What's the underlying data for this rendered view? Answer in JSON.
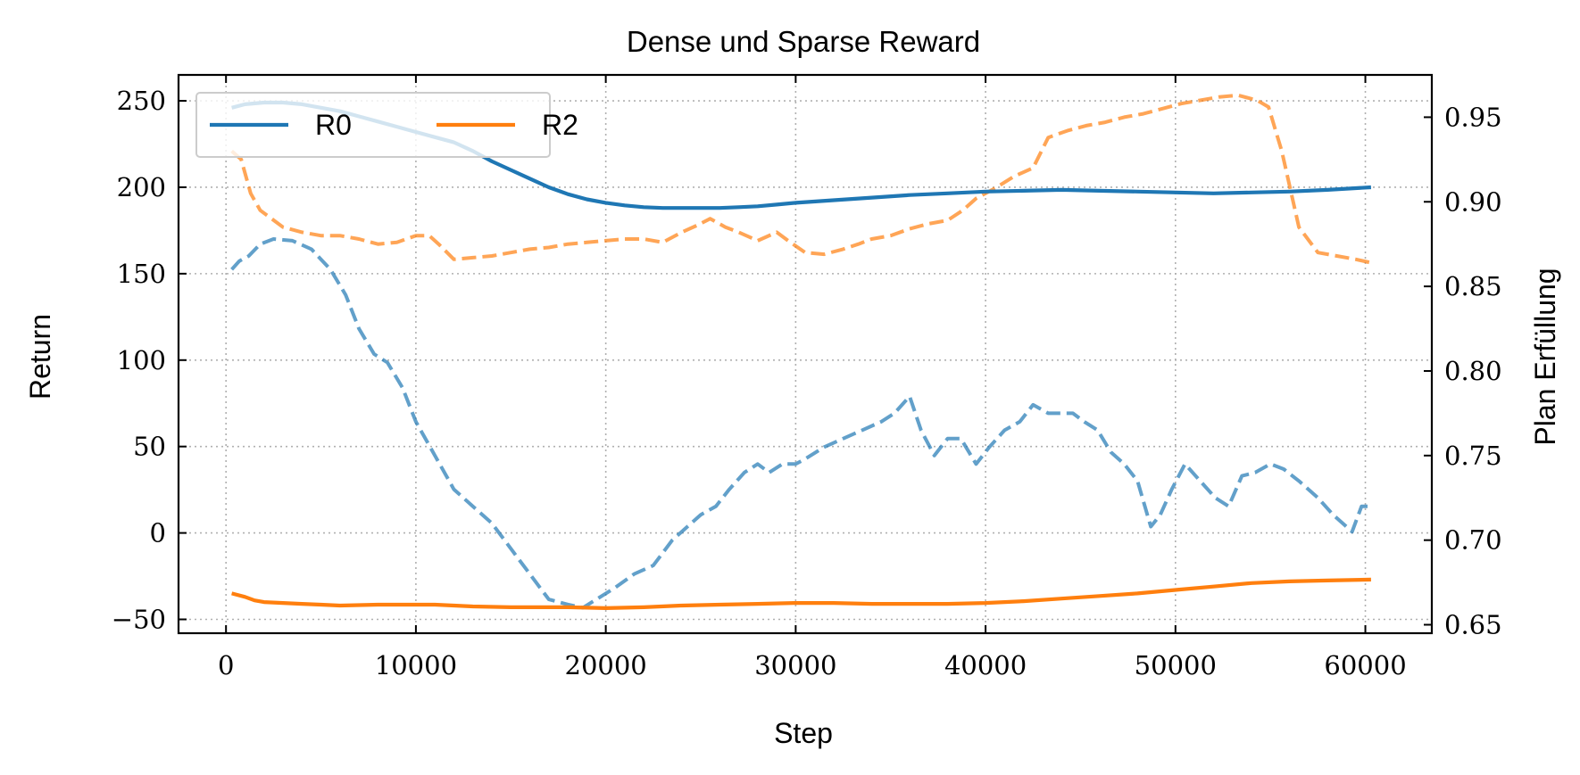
{
  "chart_data": {
    "type": "line",
    "title": "Dense und Sparse Reward",
    "xlabel": "Step",
    "ylabel": "Return",
    "y2label": "Plan Erfüllung",
    "xlim": [
      -2500,
      63500
    ],
    "ylim": [
      -58,
      265
    ],
    "y2lim": [
      0.645,
      0.975
    ],
    "xticks": [
      0,
      10000,
      20000,
      30000,
      40000,
      50000,
      60000
    ],
    "yticks": [
      -50,
      0,
      50,
      100,
      150,
      200,
      250
    ],
    "y2ticks": [
      0.65,
      0.7,
      0.75,
      0.8,
      0.85,
      0.9,
      0.95
    ],
    "grid": true,
    "legend": {
      "placement": "top-left",
      "entries": [
        "R0",
        "R2"
      ]
    },
    "colors": {
      "R0": "#1f77b4",
      "R2": "#ff7f0e"
    },
    "series": [
      {
        "name": "R0",
        "axis": "left",
        "style": "solid",
        "x": [
          300,
          1000,
          2000,
          3000,
          4000,
          5000,
          6000,
          7000,
          8000,
          9000,
          10000,
          11000,
          12000,
          13000,
          14000,
          15000,
          16000,
          17000,
          18000,
          19000,
          20000,
          21000,
          22000,
          23000,
          24000,
          25000,
          26000,
          27000,
          28000,
          29000,
          30000,
          32000,
          34000,
          36000,
          38000,
          40000,
          42000,
          44000,
          46000,
          48000,
          50000,
          52000,
          54000,
          56000,
          58000,
          60300
        ],
        "y": [
          246,
          248,
          249,
          249,
          248,
          246,
          244,
          241,
          238,
          235,
          232,
          229,
          226,
          221,
          215,
          210,
          205,
          200,
          196,
          193,
          191,
          189.5,
          188.5,
          188,
          188,
          188,
          188,
          188.5,
          189,
          190,
          191,
          192.5,
          194,
          195.5,
          196.5,
          197.5,
          198,
          198.5,
          198,
          197.5,
          197,
          196.5,
          197,
          197.5,
          198.5,
          200
        ]
      },
      {
        "name": "R2",
        "axis": "left",
        "style": "solid",
        "x": [
          300,
          1000,
          1500,
          2000,
          3000,
          4000,
          5000,
          6000,
          8000,
          10000,
          11000,
          12000,
          13000,
          15000,
          17000,
          18000,
          20000,
          22000,
          24000,
          26000,
          28000,
          30000,
          32000,
          34000,
          36000,
          38000,
          40000,
          42000,
          44000,
          46000,
          48000,
          50000,
          52000,
          54000,
          56000,
          58000,
          60300
        ],
        "y": [
          -35,
          -37,
          -39,
          -40,
          -40.5,
          -41,
          -41.5,
          -42,
          -41.5,
          -41.5,
          -41.5,
          -42,
          -42.5,
          -43,
          -43,
          -43,
          -43.5,
          -43,
          -42,
          -41.5,
          -41,
          -40.5,
          -40.5,
          -41,
          -41,
          -41,
          -40.5,
          -39.5,
          -38,
          -36.5,
          -35,
          -33,
          -31,
          -29,
          -28,
          -27.5,
          -27
        ]
      },
      {
        "name": "",
        "axis": "right",
        "style": "dashed",
        "color_of": "R0",
        "x": [
          300,
          700,
          1200,
          1800,
          2500,
          3500,
          4500,
          5500,
          6300,
          7000,
          7800,
          8500,
          9300,
          10000,
          11000,
          12000,
          13000,
          14000,
          15000,
          16000,
          17000,
          18000,
          18800,
          19500,
          20500,
          21500,
          22500,
          23500,
          24000,
          25000,
          25800,
          26500,
          27300,
          28000,
          28600,
          29300,
          30000,
          30500,
          31500,
          32500,
          33500,
          34500,
          35200,
          36000,
          36600,
          37300,
          38000,
          38700,
          39500,
          40200,
          41000,
          41800,
          42500,
          43300,
          44000,
          44600,
          45200,
          45900,
          46600,
          47300,
          48000,
          48700,
          49200,
          49800,
          50500,
          51300,
          52100,
          52800,
          53500,
          54200,
          55000,
          55700,
          56500,
          57500,
          58300,
          59300,
          59800,
          60300
        ],
        "y": [
          0.86,
          0.865,
          0.868,
          0.875,
          0.878,
          0.877,
          0.872,
          0.86,
          0.845,
          0.825,
          0.81,
          0.805,
          0.79,
          0.77,
          0.75,
          0.73,
          0.72,
          0.71,
          0.695,
          0.68,
          0.665,
          0.662,
          0.66,
          0.665,
          0.672,
          0.68,
          0.685,
          0.7,
          0.705,
          0.715,
          0.72,
          0.73,
          0.74,
          0.745,
          0.74,
          0.745,
          0.745,
          0.748,
          0.755,
          0.76,
          0.765,
          0.77,
          0.775,
          0.785,
          0.765,
          0.75,
          0.76,
          0.76,
          0.745,
          0.755,
          0.765,
          0.77,
          0.78,
          0.775,
          0.775,
          0.775,
          0.77,
          0.765,
          0.752,
          0.745,
          0.735,
          0.708,
          0.715,
          0.73,
          0.745,
          0.735,
          0.725,
          0.72,
          0.738,
          0.74,
          0.745,
          0.742,
          0.735,
          0.725,
          0.715,
          0.705,
          0.72,
          0.72
        ]
      },
      {
        "name": "",
        "axis": "right",
        "style": "dashed",
        "color_of": "R2",
        "x": [
          300,
          800,
          1300,
          1800,
          2400,
          3000,
          4000,
          5000,
          6000,
          7000,
          8000,
          9000,
          10000,
          10700,
          11200,
          12000,
          13000,
          14000,
          15000,
          16000,
          17000,
          18000,
          19000,
          20000,
          21000,
          22000,
          23000,
          24000,
          24800,
          25500,
          26300,
          27000,
          28000,
          29000,
          29600,
          30500,
          31500,
          32500,
          33300,
          34000,
          35000,
          36000,
          37000,
          38000,
          38800,
          39500,
          40500,
          41500,
          42500,
          43300,
          44300,
          45300,
          46300,
          47300,
          48300,
          49300,
          50300,
          51300,
          52300,
          53300,
          54300,
          54900,
          55600,
          56500,
          57500,
          58500,
          59500,
          60300
        ],
        "y": [
          0.93,
          0.925,
          0.905,
          0.895,
          0.89,
          0.885,
          0.882,
          0.88,
          0.88,
          0.878,
          0.875,
          0.876,
          0.88,
          0.88,
          0.875,
          0.866,
          0.867,
          0.868,
          0.87,
          0.872,
          0.873,
          0.875,
          0.876,
          0.877,
          0.878,
          0.878,
          0.876,
          0.882,
          0.886,
          0.89,
          0.885,
          0.882,
          0.877,
          0.882,
          0.877,
          0.87,
          0.869,
          0.872,
          0.875,
          0.878,
          0.88,
          0.884,
          0.887,
          0.889,
          0.895,
          0.902,
          0.908,
          0.915,
          0.92,
          0.938,
          0.942,
          0.945,
          0.947,
          0.95,
          0.952,
          0.955,
          0.958,
          0.96,
          0.962,
          0.963,
          0.96,
          0.956,
          0.93,
          0.885,
          0.87,
          0.868,
          0.866,
          0.864
        ]
      }
    ]
  }
}
